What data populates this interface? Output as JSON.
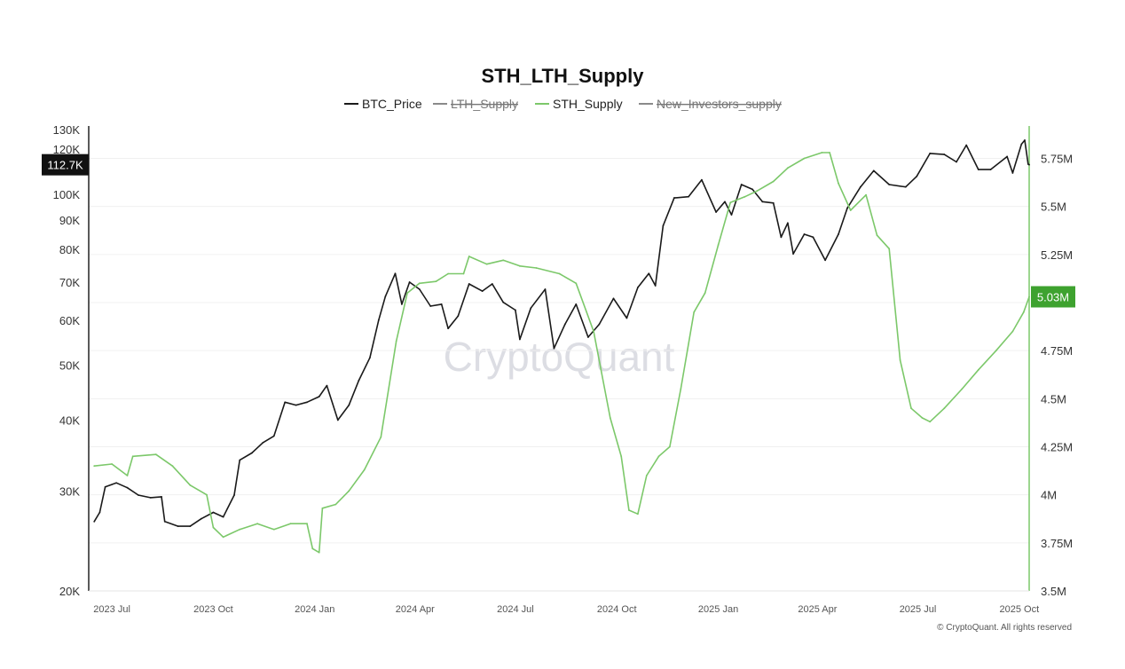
{
  "chart_data": {
    "type": "line",
    "title": "STH_LTH_Supply",
    "watermark": "CryptoQuant",
    "copyright": "© CryptoQuant. All rights reserved",
    "legend": [
      {
        "name": "BTC_Price",
        "color": "#1a1a1a",
        "hidden": false
      },
      {
        "name": "LTH_Supply",
        "color": "#8a8a8a",
        "hidden": true
      },
      {
        "name": "STH_Supply",
        "color": "#7cc86a",
        "hidden": false
      },
      {
        "name": "New_Investors_supply",
        "color": "#8a8a8a",
        "hidden": true
      }
    ],
    "x_ticks": [
      "2023 Jul",
      "2023 Oct",
      "2024 Jan",
      "2024 Apr",
      "2024 Jul",
      "2024 Oct",
      "2025 Jan",
      "2025 Apr",
      "2025 Jul",
      "2025 Oct"
    ],
    "x_range": [
      "2023-06-10",
      "2025-10-10"
    ],
    "y_left": {
      "scale": "log",
      "range": [
        20000,
        130000
      ],
      "ticks": [
        {
          "value": 20000,
          "label": "20K"
        },
        {
          "value": 30000,
          "label": "30K"
        },
        {
          "value": 40000,
          "label": "40K"
        },
        {
          "value": 50000,
          "label": "50K"
        },
        {
          "value": 60000,
          "label": "60K"
        },
        {
          "value": 70000,
          "label": "70K"
        },
        {
          "value": 80000,
          "label": "80K"
        },
        {
          "value": 90000,
          "label": "90K"
        },
        {
          "value": 100000,
          "label": "100K"
        },
        {
          "value": 120000,
          "label": "120K"
        },
        {
          "value": 130000,
          "label": "130K"
        }
      ],
      "current_label": "112.7K",
      "current_value": 112700
    },
    "y_right": {
      "scale": "linear",
      "range": [
        3500000,
        5900000
      ],
      "ticks": [
        {
          "value": 3500000,
          "label": "3.5M"
        },
        {
          "value": 3750000,
          "label": "3.75M"
        },
        {
          "value": 4000000,
          "label": "4M"
        },
        {
          "value": 4250000,
          "label": "4.25M"
        },
        {
          "value": 4500000,
          "label": "4.5M"
        },
        {
          "value": 4750000,
          "label": "4.75M"
        },
        {
          "value": 5000000,
          "label": "5M"
        },
        {
          "value": 5250000,
          "label": "5.25M"
        },
        {
          "value": 5500000,
          "label": "5.5M"
        },
        {
          "value": 5750000,
          "label": "5.75M"
        }
      ],
      "current_label": "5.03M",
      "current_value": 5030000
    },
    "series": [
      {
        "name": "BTC_Price",
        "axis": "left",
        "color": "#1a1a1a",
        "points": [
          [
            "2023-06-15",
            26500
          ],
          [
            "2023-06-20",
            27500
          ],
          [
            "2023-06-25",
            30500
          ],
          [
            "2023-07-05",
            31000
          ],
          [
            "2023-07-15",
            30400
          ],
          [
            "2023-07-25",
            29500
          ],
          [
            "2023-08-05",
            29200
          ],
          [
            "2023-08-15",
            29300
          ],
          [
            "2023-08-18",
            26500
          ],
          [
            "2023-08-30",
            26000
          ],
          [
            "2023-09-10",
            26000
          ],
          [
            "2023-09-20",
            26800
          ],
          [
            "2023-10-01",
            27500
          ],
          [
            "2023-10-10",
            27000
          ],
          [
            "2023-10-20",
            29500
          ],
          [
            "2023-10-25",
            34000
          ],
          [
            "2023-11-05",
            35000
          ],
          [
            "2023-11-15",
            36500
          ],
          [
            "2023-11-25",
            37500
          ],
          [
            "2023-12-05",
            43000
          ],
          [
            "2023-12-15",
            42500
          ],
          [
            "2023-12-25",
            43000
          ],
          [
            "2024-01-05",
            44000
          ],
          [
            "2024-01-12",
            46000
          ],
          [
            "2024-01-22",
            40000
          ],
          [
            "2024-02-01",
            42500
          ],
          [
            "2024-02-10",
            47000
          ],
          [
            "2024-02-20",
            51500
          ],
          [
            "2024-02-28",
            60000
          ],
          [
            "2024-03-05",
            66000
          ],
          [
            "2024-03-14",
            72500
          ],
          [
            "2024-03-20",
            64000
          ],
          [
            "2024-03-27",
            70000
          ],
          [
            "2024-04-05",
            68000
          ],
          [
            "2024-04-15",
            63500
          ],
          [
            "2024-04-25",
            64000
          ],
          [
            "2024-05-01",
            58000
          ],
          [
            "2024-05-10",
            61000
          ],
          [
            "2024-05-20",
            69500
          ],
          [
            "2024-06-01",
            67500
          ],
          [
            "2024-06-10",
            69500
          ],
          [
            "2024-06-20",
            64500
          ],
          [
            "2024-07-01",
            62500
          ],
          [
            "2024-07-05",
            55500
          ],
          [
            "2024-07-15",
            63000
          ],
          [
            "2024-07-28",
            68000
          ],
          [
            "2024-08-05",
            53500
          ],
          [
            "2024-08-15",
            59000
          ],
          [
            "2024-08-25",
            64000
          ],
          [
            "2024-09-05",
            56000
          ],
          [
            "2024-09-15",
            59000
          ],
          [
            "2024-09-28",
            65500
          ],
          [
            "2024-10-10",
            60500
          ],
          [
            "2024-10-20",
            68500
          ],
          [
            "2024-10-30",
            72500
          ],
          [
            "2024-11-05",
            69000
          ],
          [
            "2024-11-12",
            88000
          ],
          [
            "2024-11-22",
            98500
          ],
          [
            "2024-12-05",
            99000
          ],
          [
            "2024-12-17",
            106000
          ],
          [
            "2024-12-30",
            93000
          ],
          [
            "2025-01-07",
            97000
          ],
          [
            "2025-01-13",
            92000
          ],
          [
            "2025-01-22",
            104000
          ],
          [
            "2025-02-01",
            102000
          ],
          [
            "2025-02-10",
            97000
          ],
          [
            "2025-02-20",
            96500
          ],
          [
            "2025-02-27",
            84000
          ],
          [
            "2025-03-05",
            89000
          ],
          [
            "2025-03-10",
            78500
          ],
          [
            "2025-03-20",
            85000
          ],
          [
            "2025-03-28",
            84000
          ],
          [
            "2025-04-08",
            76500
          ],
          [
            "2025-04-20",
            85000
          ],
          [
            "2025-04-28",
            94500
          ],
          [
            "2025-05-10",
            103000
          ],
          [
            "2025-05-22",
            110000
          ],
          [
            "2025-06-05",
            104000
          ],
          [
            "2025-06-20",
            103000
          ],
          [
            "2025-06-30",
            107500
          ],
          [
            "2025-07-12",
            118000
          ],
          [
            "2025-07-25",
            117500
          ],
          [
            "2025-08-05",
            114000
          ],
          [
            "2025-08-14",
            122000
          ],
          [
            "2025-08-25",
            110500
          ],
          [
            "2025-09-05",
            110500
          ],
          [
            "2025-09-20",
            116500
          ],
          [
            "2025-09-25",
            109000
          ],
          [
            "2025-10-03",
            122500
          ],
          [
            "2025-10-06",
            124500
          ],
          [
            "2025-10-09",
            113000
          ],
          [
            "2025-10-10",
            112700
          ]
        ]
      },
      {
        "name": "STH_Supply",
        "axis": "right",
        "color": "#7cc86a",
        "points": [
          [
            "2023-06-15",
            4150000
          ],
          [
            "2023-07-01",
            4160000
          ],
          [
            "2023-07-15",
            4100000
          ],
          [
            "2023-07-20",
            4200000
          ],
          [
            "2023-08-10",
            4210000
          ],
          [
            "2023-08-25",
            4150000
          ],
          [
            "2023-09-10",
            4050000
          ],
          [
            "2023-09-25",
            4000000
          ],
          [
            "2023-10-01",
            3830000
          ],
          [
            "2023-10-10",
            3780000
          ],
          [
            "2023-10-25",
            3820000
          ],
          [
            "2023-11-10",
            3850000
          ],
          [
            "2023-11-25",
            3820000
          ],
          [
            "2023-12-10",
            3850000
          ],
          [
            "2023-12-25",
            3850000
          ],
          [
            "2023-12-30",
            3720000
          ],
          [
            "2024-01-05",
            3700000
          ],
          [
            "2024-01-08",
            3930000
          ],
          [
            "2024-01-20",
            3950000
          ],
          [
            "2024-02-01",
            4020000
          ],
          [
            "2024-02-15",
            4130000
          ],
          [
            "2024-03-01",
            4300000
          ],
          [
            "2024-03-15",
            4800000
          ],
          [
            "2024-03-25",
            5050000
          ],
          [
            "2024-04-05",
            5100000
          ],
          [
            "2024-04-20",
            5110000
          ],
          [
            "2024-05-01",
            5150000
          ],
          [
            "2024-05-15",
            5150000
          ],
          [
            "2024-05-20",
            5240000
          ],
          [
            "2024-06-05",
            5200000
          ],
          [
            "2024-06-20",
            5220000
          ],
          [
            "2024-07-05",
            5190000
          ],
          [
            "2024-07-20",
            5180000
          ],
          [
            "2024-08-10",
            5150000
          ],
          [
            "2024-08-25",
            5100000
          ],
          [
            "2024-09-10",
            4850000
          ],
          [
            "2024-09-25",
            4400000
          ],
          [
            "2024-10-05",
            4200000
          ],
          [
            "2024-10-12",
            3920000
          ],
          [
            "2024-10-20",
            3900000
          ],
          [
            "2024-10-28",
            4100000
          ],
          [
            "2024-11-08",
            4200000
          ],
          [
            "2024-11-18",
            4250000
          ],
          [
            "2024-11-28",
            4550000
          ],
          [
            "2024-12-10",
            4950000
          ],
          [
            "2024-12-20",
            5050000
          ],
          [
            "2025-01-01",
            5300000
          ],
          [
            "2025-01-12",
            5520000
          ],
          [
            "2025-01-25",
            5550000
          ],
          [
            "2025-02-05",
            5580000
          ],
          [
            "2025-02-20",
            5630000
          ],
          [
            "2025-03-05",
            5700000
          ],
          [
            "2025-03-20",
            5750000
          ],
          [
            "2025-04-05",
            5780000
          ],
          [
            "2025-04-12",
            5780000
          ],
          [
            "2025-04-20",
            5620000
          ],
          [
            "2025-05-01",
            5480000
          ],
          [
            "2025-05-15",
            5560000
          ],
          [
            "2025-05-25",
            5350000
          ],
          [
            "2025-06-05",
            5280000
          ],
          [
            "2025-06-15",
            4700000
          ],
          [
            "2025-06-25",
            4450000
          ],
          [
            "2025-07-05",
            4400000
          ],
          [
            "2025-07-12",
            4380000
          ],
          [
            "2025-07-25",
            4450000
          ],
          [
            "2025-08-10",
            4550000
          ],
          [
            "2025-08-25",
            4650000
          ],
          [
            "2025-09-10",
            4750000
          ],
          [
            "2025-09-25",
            4850000
          ],
          [
            "2025-10-05",
            4950000
          ],
          [
            "2025-10-10",
            5030000
          ]
        ]
      }
    ]
  }
}
